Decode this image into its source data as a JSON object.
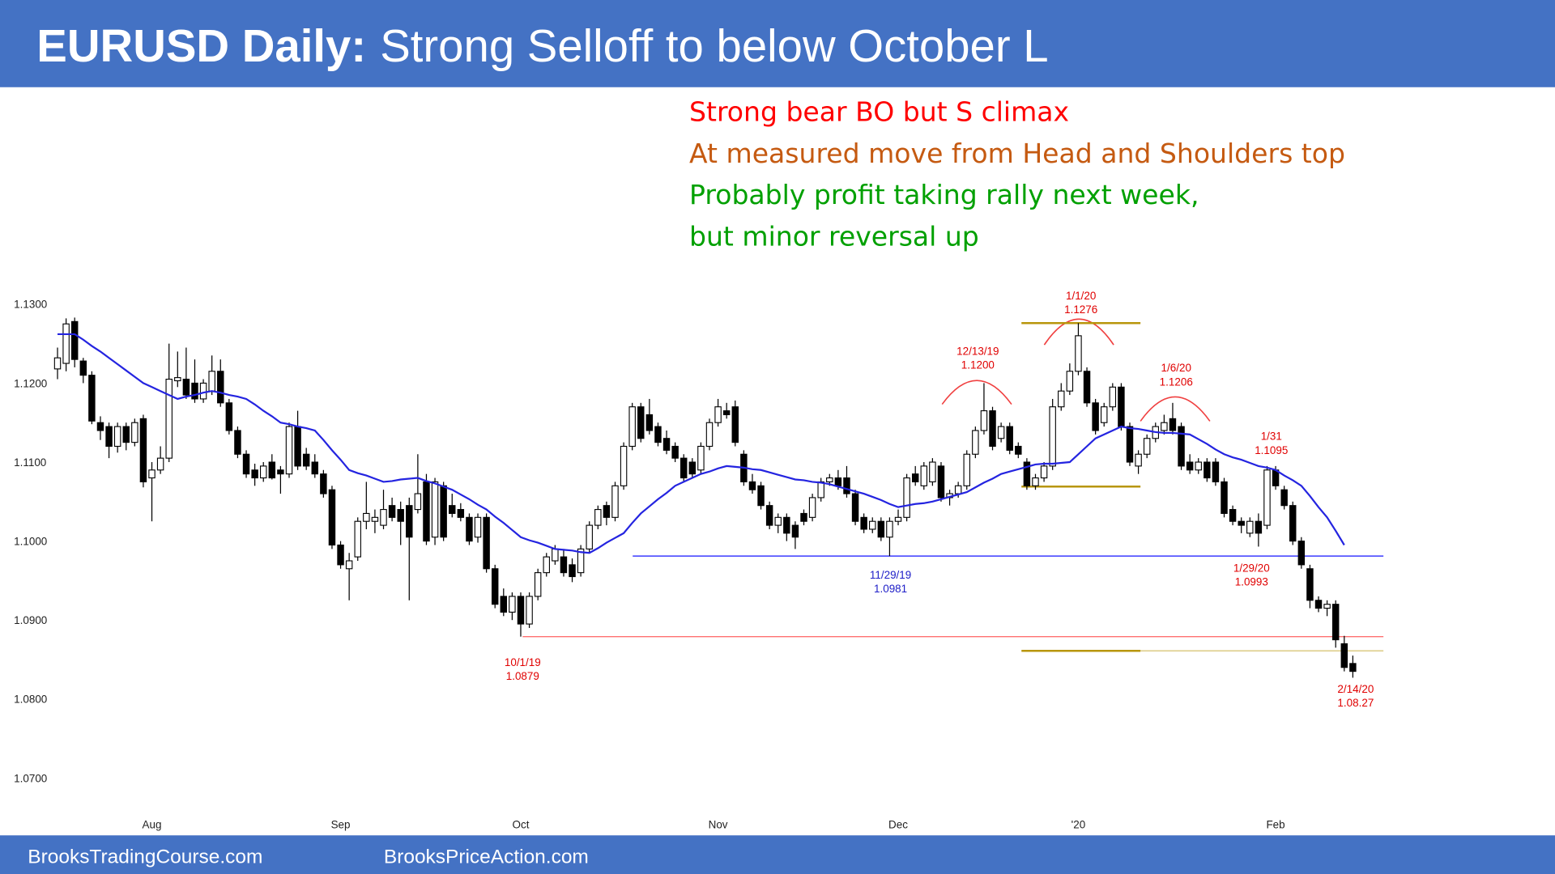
{
  "header": {
    "title_bold": "EURUSD Daily:",
    "title": "Strong Selloff to below October L"
  },
  "notes": [
    {
      "text": "Strong bear BO but S climax",
      "color": "#ff0000"
    },
    {
      "text": "At measured move from Head and Shoulders top",
      "color": "#c55a11"
    },
    {
      "text": "Probably profit taking rally next week,",
      "color": "#00a000"
    },
    {
      "text": "but minor reversal up",
      "color": "#00a000"
    }
  ],
  "chart_data": {
    "type": "candlestick",
    "categories": [
      null,
      null,
      null,
      null,
      null,
      null,
      null,
      null,
      null,
      null,
      null,
      "Aug",
      null,
      null,
      null,
      null,
      null,
      null,
      null,
      null,
      null,
      null,
      null,
      null,
      null,
      null,
      null,
      null,
      null,
      null,
      null,
      null,
      null,
      "Sep",
      null,
      null,
      null,
      null,
      null,
      null,
      null,
      null,
      null,
      null,
      null,
      null,
      null,
      null,
      null,
      null,
      null,
      null,
      null,
      null,
      "Oct",
      null,
      null,
      null,
      null,
      null,
      null,
      null,
      null,
      null,
      null,
      null,
      null,
      null,
      null,
      null,
      null,
      null,
      null,
      null,
      null,
      null,
      null,
      "Nov",
      null,
      null,
      null,
      null,
      null,
      null,
      null,
      null,
      null,
      null,
      null,
      null,
      null,
      null,
      null,
      null,
      null,
      null,
      null,
      null,
      "Dec",
      null,
      null,
      null,
      null,
      null,
      null,
      null,
      null,
      null,
      null,
      null,
      null,
      null,
      null,
      null,
      null,
      null,
      null,
      null,
      null,
      "'20",
      null,
      null,
      null,
      null,
      null,
      null,
      null,
      null,
      null,
      null,
      null,
      null,
      null,
      null,
      null,
      null,
      null,
      null,
      null,
      null,
      null,
      null,
      "Feb",
      null,
      null,
      null,
      null,
      null,
      null,
      null,
      null,
      null
    ],
    "open": [
      1.1218,
      1.1225,
      1.1278,
      1.1228,
      1.121,
      1.115,
      1.1145,
      1.112,
      1.1145,
      1.1125,
      1.1155,
      1.108,
      1.109,
      1.1105,
      1.1203,
      1.1205,
      1.12,
      1.118,
      1.119,
      1.1215,
      1.1175,
      1.114,
      1.111,
      1.109,
      1.108,
      1.11,
      1.109,
      1.1085,
      1.1145,
      1.111,
      1.11,
      1.1085,
      1.1065,
      1.0995,
      1.0965,
      1.098,
      1.1025,
      1.1025,
      1.102,
      1.1045,
      1.104,
      1.1045,
      1.104,
      1.1075,
      1.1005,
      1.107,
      1.1045,
      1.104,
      1.103,
      1.1005,
      1.103,
      1.0965,
      1.093,
      1.091,
      1.093,
      1.0895,
      1.093,
      1.096,
      1.0975,
      1.098,
      1.097,
      1.096,
      1.099,
      1.102,
      1.1045,
      1.103,
      1.107,
      1.112,
      1.117,
      1.116,
      1.1145,
      1.113,
      1.112,
      1.1105,
      1.11,
      1.109,
      1.112,
      1.115,
      1.1165,
      1.117,
      1.111,
      1.1075,
      1.107,
      1.1045,
      1.102,
      1.103,
      1.102,
      1.1035,
      1.103,
      1.1055,
      1.1075,
      1.108,
      1.108,
      1.106,
      1.103,
      1.1015,
      1.1025,
      1.1005,
      1.1025,
      1.103,
      1.1085,
      1.107,
      1.1075,
      1.1095,
      1.1055,
      1.106,
      1.107,
      1.111,
      1.114,
      1.1165,
      1.113,
      1.1145,
      1.112,
      1.11,
      1.107,
      1.108,
      1.1095,
      1.117,
      1.119,
      1.1215,
      1.1215,
      1.1175,
      1.115,
      1.117,
      1.1195,
      1.1145,
      1.1095,
      1.111,
      1.113,
      1.114,
      1.1155,
      1.1145,
      1.11,
      1.109,
      1.11,
      1.11,
      1.1075,
      1.104,
      1.1025,
      1.101,
      1.1025,
      1.102,
      1.109,
      1.1065,
      1.1045,
      1.1,
      1.0965,
      1.0925,
      1.0915,
      1.092,
      1.087,
      1.0845
    ],
    "high": [
      1.1245,
      1.1282,
      1.1283,
      1.1232,
      1.1215,
      1.1158,
      1.115,
      1.115,
      1.115,
      1.1155,
      1.116,
      1.11,
      1.112,
      1.125,
      1.124,
      1.1245,
      1.123,
      1.1205,
      1.1235,
      1.123,
      1.118,
      1.1145,
      1.1115,
      1.1098,
      1.11,
      1.111,
      1.1095,
      1.115,
      1.1165,
      1.1118,
      1.111,
      1.109,
      1.107,
      1.1,
      1.0985,
      1.103,
      1.1075,
      1.104,
      1.1065,
      1.1055,
      1.105,
      1.1055,
      1.111,
      1.1085,
      1.108,
      1.1075,
      1.106,
      1.1048,
      1.1035,
      1.1035,
      1.1035,
      1.097,
      1.094,
      1.0935,
      1.0935,
      1.0935,
      1.0965,
      1.0985,
      1.0995,
      1.099,
      1.0978,
      1.0995,
      1.1025,
      1.1045,
      1.105,
      1.1075,
      1.1125,
      1.1175,
      1.1175,
      1.118,
      1.115,
      1.114,
      1.1125,
      1.111,
      1.1105,
      1.1125,
      1.1155,
      1.118,
      1.1175,
      1.1178,
      1.1115,
      1.1085,
      1.1075,
      1.105,
      1.1035,
      1.1035,
      1.1025,
      1.104,
      1.106,
      1.108,
      1.1085,
      1.109,
      1.1095,
      1.1065,
      1.1035,
      1.103,
      1.103,
      1.103,
      1.104,
      1.1085,
      1.1095,
      1.11,
      1.1105,
      1.11,
      1.1065,
      1.1075,
      1.1115,
      1.1145,
      1.12,
      1.117,
      1.115,
      1.115,
      1.1125,
      1.1105,
      1.1085,
      1.11,
      1.118,
      1.12,
      1.1225,
      1.1276,
      1.122,
      1.118,
      1.1175,
      1.12,
      1.12,
      1.115,
      1.1115,
      1.1135,
      1.115,
      1.116,
      1.1175,
      1.115,
      1.111,
      1.1105,
      1.1105,
      1.1105,
      1.108,
      1.1045,
      1.103,
      1.103,
      1.1035,
      1.1095,
      1.1095,
      1.107,
      1.105,
      1.1005,
      1.097,
      1.093,
      1.0925,
      1.0925,
      1.088,
      1.0855
    ],
    "low": [
      1.1205,
      1.1215,
      1.122,
      1.12,
      1.1148,
      1.1128,
      1.1105,
      1.1112,
      1.1115,
      1.112,
      1.1068,
      1.1025,
      1.1085,
      1.11,
      1.1195,
      1.118,
      1.1175,
      1.1175,
      1.1185,
      1.117,
      1.1135,
      1.1105,
      1.108,
      1.107,
      1.1075,
      1.1078,
      1.106,
      1.108,
      1.109,
      1.109,
      1.108,
      1.1055,
      1.099,
      1.0965,
      1.0925,
      1.0975,
      1.1015,
      1.101,
      1.1015,
      1.1025,
      1.0995,
      1.0925,
      1.1035,
      1.0995,
      1.0995,
      1.1,
      1.103,
      1.1025,
      1.0995,
      1.0998,
      1.096,
      1.0915,
      1.0905,
      1.09,
      1.0879,
      1.089,
      1.0925,
      1.0955,
      1.097,
      1.0955,
      1.0948,
      1.0955,
      1.0985,
      1.1015,
      1.102,
      1.1025,
      1.1065,
      1.1115,
      1.1125,
      1.1135,
      1.112,
      1.111,
      1.11,
      1.1075,
      1.108,
      1.1085,
      1.1115,
      1.1145,
      1.1155,
      1.112,
      1.107,
      1.106,
      1.104,
      1.1015,
      1.101,
      1.1,
      1.099,
      1.102,
      1.1025,
      1.105,
      1.107,
      1.1065,
      1.1055,
      1.102,
      1.101,
      1.101,
      1.1,
      1.0981,
      1.102,
      1.1025,
      1.107,
      1.1065,
      1.107,
      1.105,
      1.1045,
      1.1055,
      1.1065,
      1.1105,
      1.1135,
      1.1115,
      1.1125,
      1.111,
      1.1105,
      1.1065,
      1.1065,
      1.1075,
      1.109,
      1.1165,
      1.1185,
      1.121,
      1.117,
      1.1135,
      1.1145,
      1.1165,
      1.114,
      1.1095,
      1.1085,
      1.1105,
      1.1125,
      1.1135,
      1.1135,
      1.109,
      1.1085,
      1.1085,
      1.1075,
      1.107,
      1.103,
      1.102,
      1.101,
      1.1005,
      1.0993,
      1.1015,
      1.1065,
      1.104,
      1.0995,
      1.0965,
      1.0915,
      1.091,
      1.0905,
      1.0865,
      1.0835,
      1.0827
    ],
    "close": [
      1.1232,
      1.1275,
      1.123,
      1.121,
      1.1152,
      1.114,
      1.112,
      1.1145,
      1.1125,
      1.115,
      1.1075,
      1.109,
      1.1105,
      1.1205,
      1.1207,
      1.1185,
      1.118,
      1.12,
      1.1215,
      1.1175,
      1.114,
      1.111,
      1.1085,
      1.108,
      1.1095,
      1.108,
      1.1085,
      1.1145,
      1.1095,
      1.1095,
      1.1085,
      1.106,
      1.0995,
      1.097,
      1.0975,
      1.1025,
      1.1035,
      1.103,
      1.104,
      1.103,
      1.1025,
      1.1005,
      1.106,
      1.1,
      1.1075,
      1.1005,
      1.1035,
      1.103,
      1.1,
      1.103,
      1.0965,
      1.092,
      1.091,
      1.093,
      1.0895,
      1.093,
      1.096,
      1.098,
      1.099,
      1.096,
      1.0955,
      1.099,
      1.102,
      1.104,
      1.103,
      1.107,
      1.112,
      1.117,
      1.113,
      1.114,
      1.1125,
      1.1115,
      1.1105,
      1.108,
      1.1085,
      1.112,
      1.115,
      1.117,
      1.116,
      1.1125,
      1.1075,
      1.1065,
      1.1045,
      1.102,
      1.103,
      1.101,
      1.1005,
      1.1025,
      1.1055,
      1.1075,
      1.108,
      1.107,
      1.106,
      1.1025,
      1.1015,
      1.1025,
      1.1005,
      1.1025,
      1.103,
      1.108,
      1.1075,
      1.1095,
      1.11,
      1.1055,
      1.106,
      1.107,
      1.111,
      1.114,
      1.1165,
      1.112,
      1.1145,
      1.1115,
      1.111,
      1.107,
      1.108,
      1.1095,
      1.117,
      1.119,
      1.1215,
      1.126,
      1.1175,
      1.114,
      1.117,
      1.1195,
      1.1145,
      1.11,
      1.111,
      1.113,
      1.1145,
      1.115,
      1.114,
      1.1095,
      1.109,
      1.11,
      1.108,
      1.1075,
      1.1035,
      1.1025,
      1.102,
      1.1025,
      1.101,
      1.109,
      1.107,
      1.1045,
      1.1,
      1.097,
      1.0925,
      1.0915,
      1.092,
      1.0875,
      1.084,
      1.0835
    ],
    "up_color": "#ffffff",
    "down_color": "#000000",
    "ma_color": "#2424e0",
    "ma_values": [
      1.1262,
      1.1262,
      1.1262,
      1.1255,
      1.1247,
      1.124,
      1.1232,
      1.1224,
      1.1216,
      1.1208,
      1.12,
      1.1195,
      1.119,
      1.1185,
      1.118,
      1.1183,
      1.1185,
      1.1188,
      1.119,
      1.1188,
      1.1185,
      1.1183,
      1.118,
      1.1173,
      1.1165,
      1.1158,
      1.115,
      1.1148,
      1.1145,
      1.1143,
      1.114,
      1.1128,
      1.1115,
      1.1103,
      1.109,
      1.1086,
      1.1083,
      1.1079,
      1.1075,
      1.1076,
      1.1078,
      1.1079,
      1.108,
      1.1076,
      1.1073,
      1.1069,
      1.1065,
      1.1059,
      1.1053,
      1.1046,
      1.104,
      1.1031,
      1.1023,
      1.1014,
      1.1005,
      1.1001,
      1.0998,
      1.0994,
      1.099,
      1.0989,
      1.0988,
      1.0986,
      1.0985,
      1.0991,
      1.0998,
      1.1004,
      1.101,
      1.1023,
      1.1035,
      1.1044,
      1.1053,
      1.1061,
      1.107,
      1.1075,
      1.108,
      1.1085,
      1.1088,
      1.1092,
      1.1095,
      1.1094,
      1.1093,
      1.1091,
      1.109,
      1.1087,
      1.1084,
      1.1081,
      1.1078,
      1.1077,
      1.1075,
      1.1074,
      1.1072,
      1.1069,
      1.1066,
      1.1063,
      1.106,
      1.1056,
      1.1052,
      1.1047,
      1.1043,
      1.1045,
      1.1047,
      1.1048,
      1.105,
      1.1053,
      1.1056,
      1.1059,
      1.1062,
      1.1068,
      1.1074,
      1.1079,
      1.1085,
      1.1088,
      1.1091,
      1.1094,
      1.1097,
      1.1098,
      1.1098,
      1.1099,
      1.11,
      1.111,
      1.112,
      1.113,
      1.1135,
      1.114,
      1.1145,
      1.1143,
      1.1142,
      1.114,
      1.1138,
      1.1137,
      1.1137,
      1.1136,
      1.1135,
      1.1129,
      1.1123,
      1.1116,
      1.111,
      1.1106,
      1.1103,
      1.1099,
      1.1095,
      1.1093,
      1.109,
      1.1083,
      1.1077,
      1.107,
      1.1057,
      1.1043,
      1.103,
      1.1013,
      1.0995,
      null
    ],
    "ylim": [
      1.066,
      1.132
    ],
    "yticks": [
      {
        "value": 1.07,
        "label": "1.0700"
      },
      {
        "value": 1.08,
        "label": "1.0800"
      },
      {
        "value": 1.09,
        "label": "1.0900"
      },
      {
        "value": 1.1,
        "label": "1.1000"
      },
      {
        "value": 1.11,
        "label": "1.1100"
      },
      {
        "value": 1.12,
        "label": "1.1200"
      },
      {
        "value": 1.13,
        "label": "1.1300"
      }
    ],
    "levels": [
      {
        "value": 1.0981,
        "color": "#3b3bff"
      },
      {
        "value": 1.0879,
        "color": "#ff7070"
      },
      {
        "value": 1.1276,
        "color": "#b8960c"
      },
      {
        "value": 1.1069,
        "color": "#b8960c"
      },
      {
        "value": 1.0861,
        "color": "#b8960c"
      }
    ],
    "annotations": [
      {
        "date": "12/13/19",
        "price": "1.1200",
        "color": "#e00000"
      },
      {
        "date": "1/1/20",
        "price": "1.1276",
        "color": "#e00000"
      },
      {
        "date": "1/6/20",
        "price": "1.1206",
        "color": "#e00000"
      },
      {
        "date": "1/31",
        "price": "1.1095",
        "color": "#e00000"
      },
      {
        "date": "11/29/19",
        "price": "1.0981",
        "color": "#2020c8"
      },
      {
        "date": "10/1/19",
        "price": "1.0879",
        "color": "#e00000"
      },
      {
        "date": "1/29/20",
        "price": "1.0993",
        "color": "#e00000"
      },
      {
        "date": "2/14/20",
        "price": "1.08.27",
        "color": "#e00000"
      }
    ]
  },
  "footer": [
    "BrooksTradingCourse.com",
    "BrooksPriceAction.com"
  ]
}
